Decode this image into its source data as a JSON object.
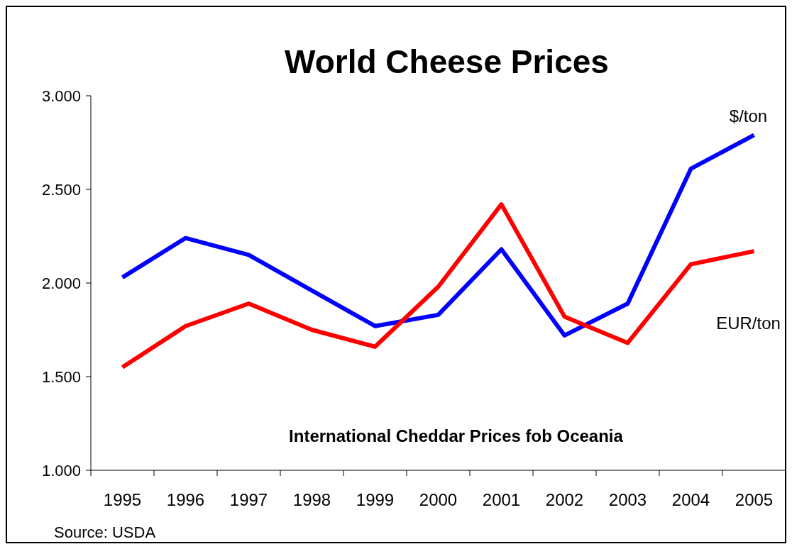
{
  "chart_data": {
    "type": "line",
    "title": "World Cheese Prices",
    "subtitle": "International Cheddar Prices fob Oceania",
    "categories": [
      "1995",
      "1996",
      "1997",
      "1998",
      "1999",
      "2000",
      "2001",
      "2002",
      "2003",
      "2004",
      "2005"
    ],
    "series": [
      {
        "name": "$/ton",
        "color": "#0000ff",
        "values": [
          2030,
          2240,
          2150,
          1960,
          1770,
          1830,
          2180,
          1720,
          1890,
          2610,
          2790
        ]
      },
      {
        "name": "EUR/ton",
        "color": "#ff0000",
        "values": [
          1550,
          1770,
          1890,
          1750,
          1660,
          1980,
          2420,
          1820,
          1680,
          2100,
          2170
        ]
      }
    ],
    "ylim": [
      1000,
      3000
    ],
    "yticks": [
      {
        "value": 1000,
        "label": "1.000"
      },
      {
        "value": 1500,
        "label": "1.500"
      },
      {
        "value": 2000,
        "label": "2.000"
      },
      {
        "value": 2500,
        "label": "2.500"
      },
      {
        "value": 3000,
        "label": "3.000"
      }
    ],
    "grid": false,
    "legend": false,
    "marker": "none",
    "line_style": "solid",
    "annotations": [
      "Source: USDA"
    ]
  }
}
